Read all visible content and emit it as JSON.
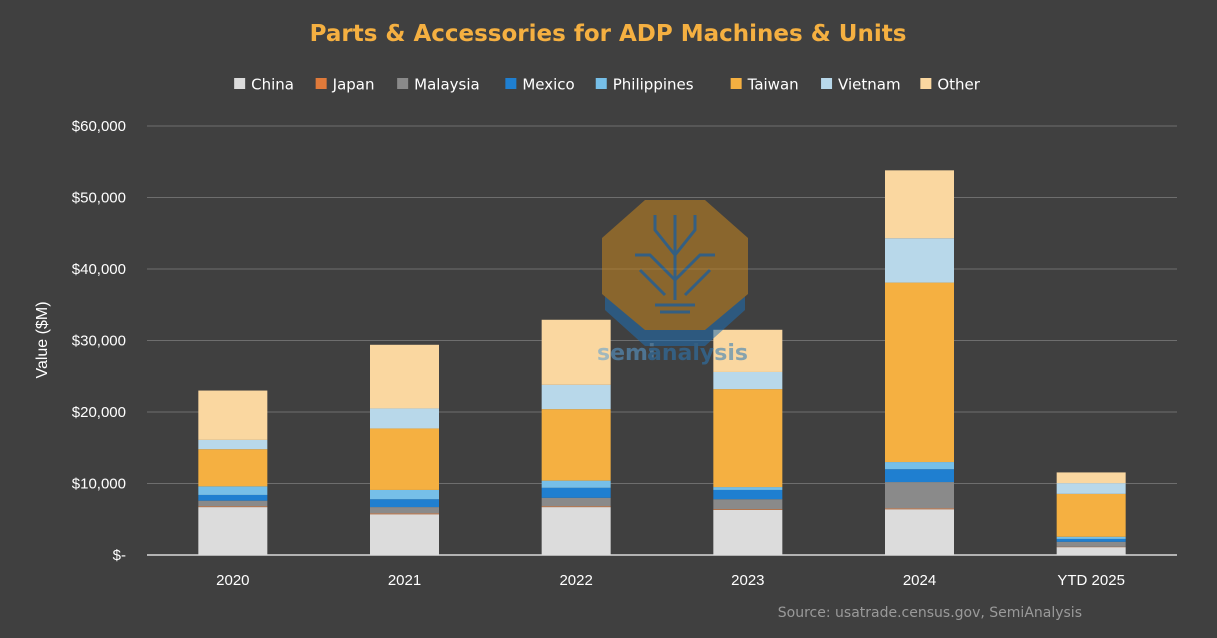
{
  "chart_data": {
    "type": "bar",
    "stacked": true,
    "title": "Parts & Accessories for ADP Machines & Units",
    "ylabel": "Value ($M)",
    "xlabel": "",
    "ylim": [
      0,
      60000
    ],
    "yticks": [
      {
        "value": 0,
        "label": "$-"
      },
      {
        "value": 10000,
        "label": "$10,000"
      },
      {
        "value": 20000,
        "label": "$20,000"
      },
      {
        "value": 30000,
        "label": "$30,000"
      },
      {
        "value": 40000,
        "label": "$40,000"
      },
      {
        "value": 50000,
        "label": "$50,000"
      },
      {
        "value": 60000,
        "label": "$60,000"
      }
    ],
    "grid": true,
    "legend_position": "top",
    "categories": [
      "2020",
      "2021",
      "2022",
      "2023",
      "2024",
      "YTD 2025"
    ],
    "series": [
      {
        "name": "China",
        "color": "#dcdcdc",
        "values": [
          6700,
          5700,
          6700,
          6300,
          6400,
          1100
        ]
      },
      {
        "name": "Japan",
        "color": "#e07a3a",
        "values": [
          100,
          100,
          100,
          100,
          100,
          50
        ]
      },
      {
        "name": "Malaysia",
        "color": "#8a8a8a",
        "values": [
          800,
          900,
          1200,
          1400,
          3700,
          700
        ]
      },
      {
        "name": "Mexico",
        "color": "#1f7fd0",
        "values": [
          800,
          1100,
          1400,
          1300,
          1800,
          400
        ]
      },
      {
        "name": "Philippines",
        "color": "#76bfe8",
        "values": [
          1200,
          1300,
          1000,
          400,
          1000,
          300
        ]
      },
      {
        "name": "Taiwan",
        "color": "#f5b041",
        "values": [
          5200,
          8600,
          10000,
          13700,
          25100,
          6000
        ]
      },
      {
        "name": "Vietnam",
        "color": "#b8d8ea",
        "values": [
          1300,
          2800,
          3400,
          2400,
          6200,
          1500
        ]
      },
      {
        "name": "Other",
        "color": "#fad7a0",
        "values": [
          6900,
          8900,
          9100,
          5900,
          9500,
          1500
        ]
      }
    ]
  },
  "source": "Source: usatrade.census.gov, SemiAnalysis",
  "watermark": {
    "name": "semianalysis-logo",
    "text_a": "semi",
    "text_b": "analysis"
  }
}
